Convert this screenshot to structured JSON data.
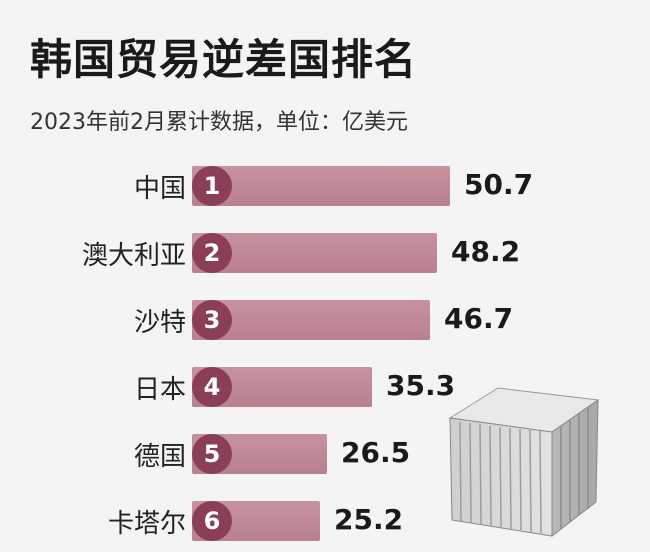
{
  "title": "韩国贸易逆差国排名",
  "subtitle": "2023年前2月累计数据，单位：亿美元",
  "icon": "shipping-container-icon",
  "colors": {
    "bar": "#c18a98",
    "rank_badge": "#8a3f56"
  },
  "chart_data": {
    "type": "bar",
    "orientation": "horizontal",
    "title": "韩国贸易逆差国排名",
    "subtitle": "2023年前2月累计数据，单位：亿美元",
    "categories": [
      "中国",
      "澳大利亚",
      "沙特",
      "日本",
      "德国",
      "卡塔尔"
    ],
    "ranks": [
      "1",
      "2",
      "3",
      "4",
      "5",
      "6"
    ],
    "values": [
      50.7,
      48.2,
      46.7,
      35.3,
      26.5,
      25.2
    ],
    "value_labels": [
      "50.7",
      "48.2",
      "46.7",
      "35.3",
      "26.5",
      "25.2"
    ]
  }
}
